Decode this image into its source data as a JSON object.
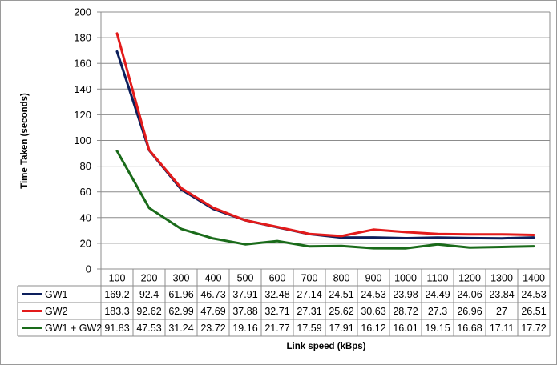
{
  "chart_data": {
    "type": "line",
    "title": "",
    "xlabel": "Link speed (kBps)",
    "ylabel": "Time Taken (seconds)",
    "ylim": [
      0,
      200
    ],
    "yticks": [
      "0",
      "20",
      "40",
      "60",
      "80",
      "100",
      "120",
      "140",
      "160",
      "180",
      "200"
    ],
    "grid": true,
    "legend": "data-table-rows",
    "categories": [
      "100",
      "200",
      "300",
      "400",
      "500",
      "600",
      "700",
      "800",
      "900",
      "1000",
      "1100",
      "1200",
      "1300",
      "1400"
    ],
    "series": [
      {
        "name": "GW1",
        "color": "#0d1f5c",
        "values": [
          169.2,
          92.4,
          61.96,
          46.73,
          37.91,
          32.48,
          27.14,
          24.51,
          24.53,
          23.98,
          24.49,
          24.06,
          23.84,
          24.53
        ],
        "labels": [
          "169.2",
          "92.4",
          "61.96",
          "46.73",
          "37.91",
          "32.48",
          "27.14",
          "24.51",
          "24.53",
          "23.98",
          "24.49",
          "24.06",
          "23.84",
          "24.53"
        ]
      },
      {
        "name": "GW2",
        "color": "#e31b1b",
        "values": [
          183.3,
          92.62,
          62.99,
          47.69,
          37.88,
          32.71,
          27.31,
          25.62,
          30.63,
          28.72,
          27.3,
          26.96,
          27,
          26.51
        ],
        "labels": [
          "183.3",
          "92.62",
          "62.99",
          "47.69",
          "37.88",
          "32.71",
          "27.31",
          "25.62",
          "30.63",
          "28.72",
          "27.3",
          "26.96",
          "27",
          "26.51"
        ]
      },
      {
        "name": "GW1 + GW2",
        "color": "#1a6b1a",
        "values": [
          91.83,
          47.53,
          31.24,
          23.72,
          19.16,
          21.77,
          17.59,
          17.91,
          16.12,
          16.01,
          19.15,
          16.68,
          17.11,
          17.72
        ],
        "labels": [
          "91.83",
          "47.53",
          "31.24",
          "23.72",
          "19.16",
          "21.77",
          "17.59",
          "17.91",
          "16.12",
          "16.01",
          "19.15",
          "16.68",
          "17.11",
          "17.72"
        ]
      }
    ]
  }
}
